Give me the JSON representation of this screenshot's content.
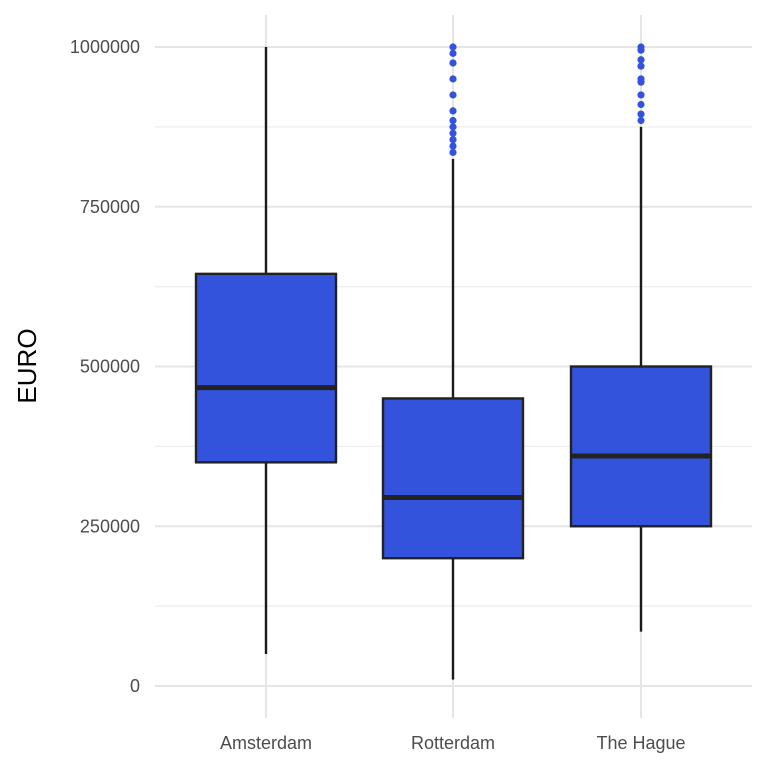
{
  "chart_data": {
    "type": "boxplot",
    "title": "",
    "xlabel": "",
    "ylabel": "EURO",
    "ylim": [
      -40000,
      1040000
    ],
    "yticks": [
      0,
      250000,
      500000,
      750000,
      1000000
    ],
    "ytick_labels": [
      "0",
      "250000",
      "500000",
      "750000",
      "1000000"
    ],
    "grid": true,
    "fill_color": "#3353dd",
    "outlier_color": "#3353dd",
    "categories": [
      "Amsterdam",
      "Rotterdam",
      "The Hague"
    ],
    "boxes": [
      {
        "category": "Amsterdam",
        "min": 50000,
        "q1": 350000,
        "median": 467000,
        "q3": 645000,
        "max": 1000000,
        "outliers": []
      },
      {
        "category": "Rotterdam",
        "min": 10000,
        "q1": 200000,
        "median": 295000,
        "q3": 450000,
        "max": 825000,
        "outliers": [
          835000,
          845000,
          855000,
          865000,
          875000,
          885000,
          900000,
          925000,
          950000,
          975000,
          990000,
          1000000
        ]
      },
      {
        "category": "The Hague",
        "min": 85000,
        "q1": 250000,
        "median": 360000,
        "q3": 500000,
        "max": 875000,
        "outliers": [
          885000,
          895000,
          910000,
          925000,
          945000,
          950000,
          970000,
          980000,
          995000,
          1000000
        ]
      }
    ]
  }
}
